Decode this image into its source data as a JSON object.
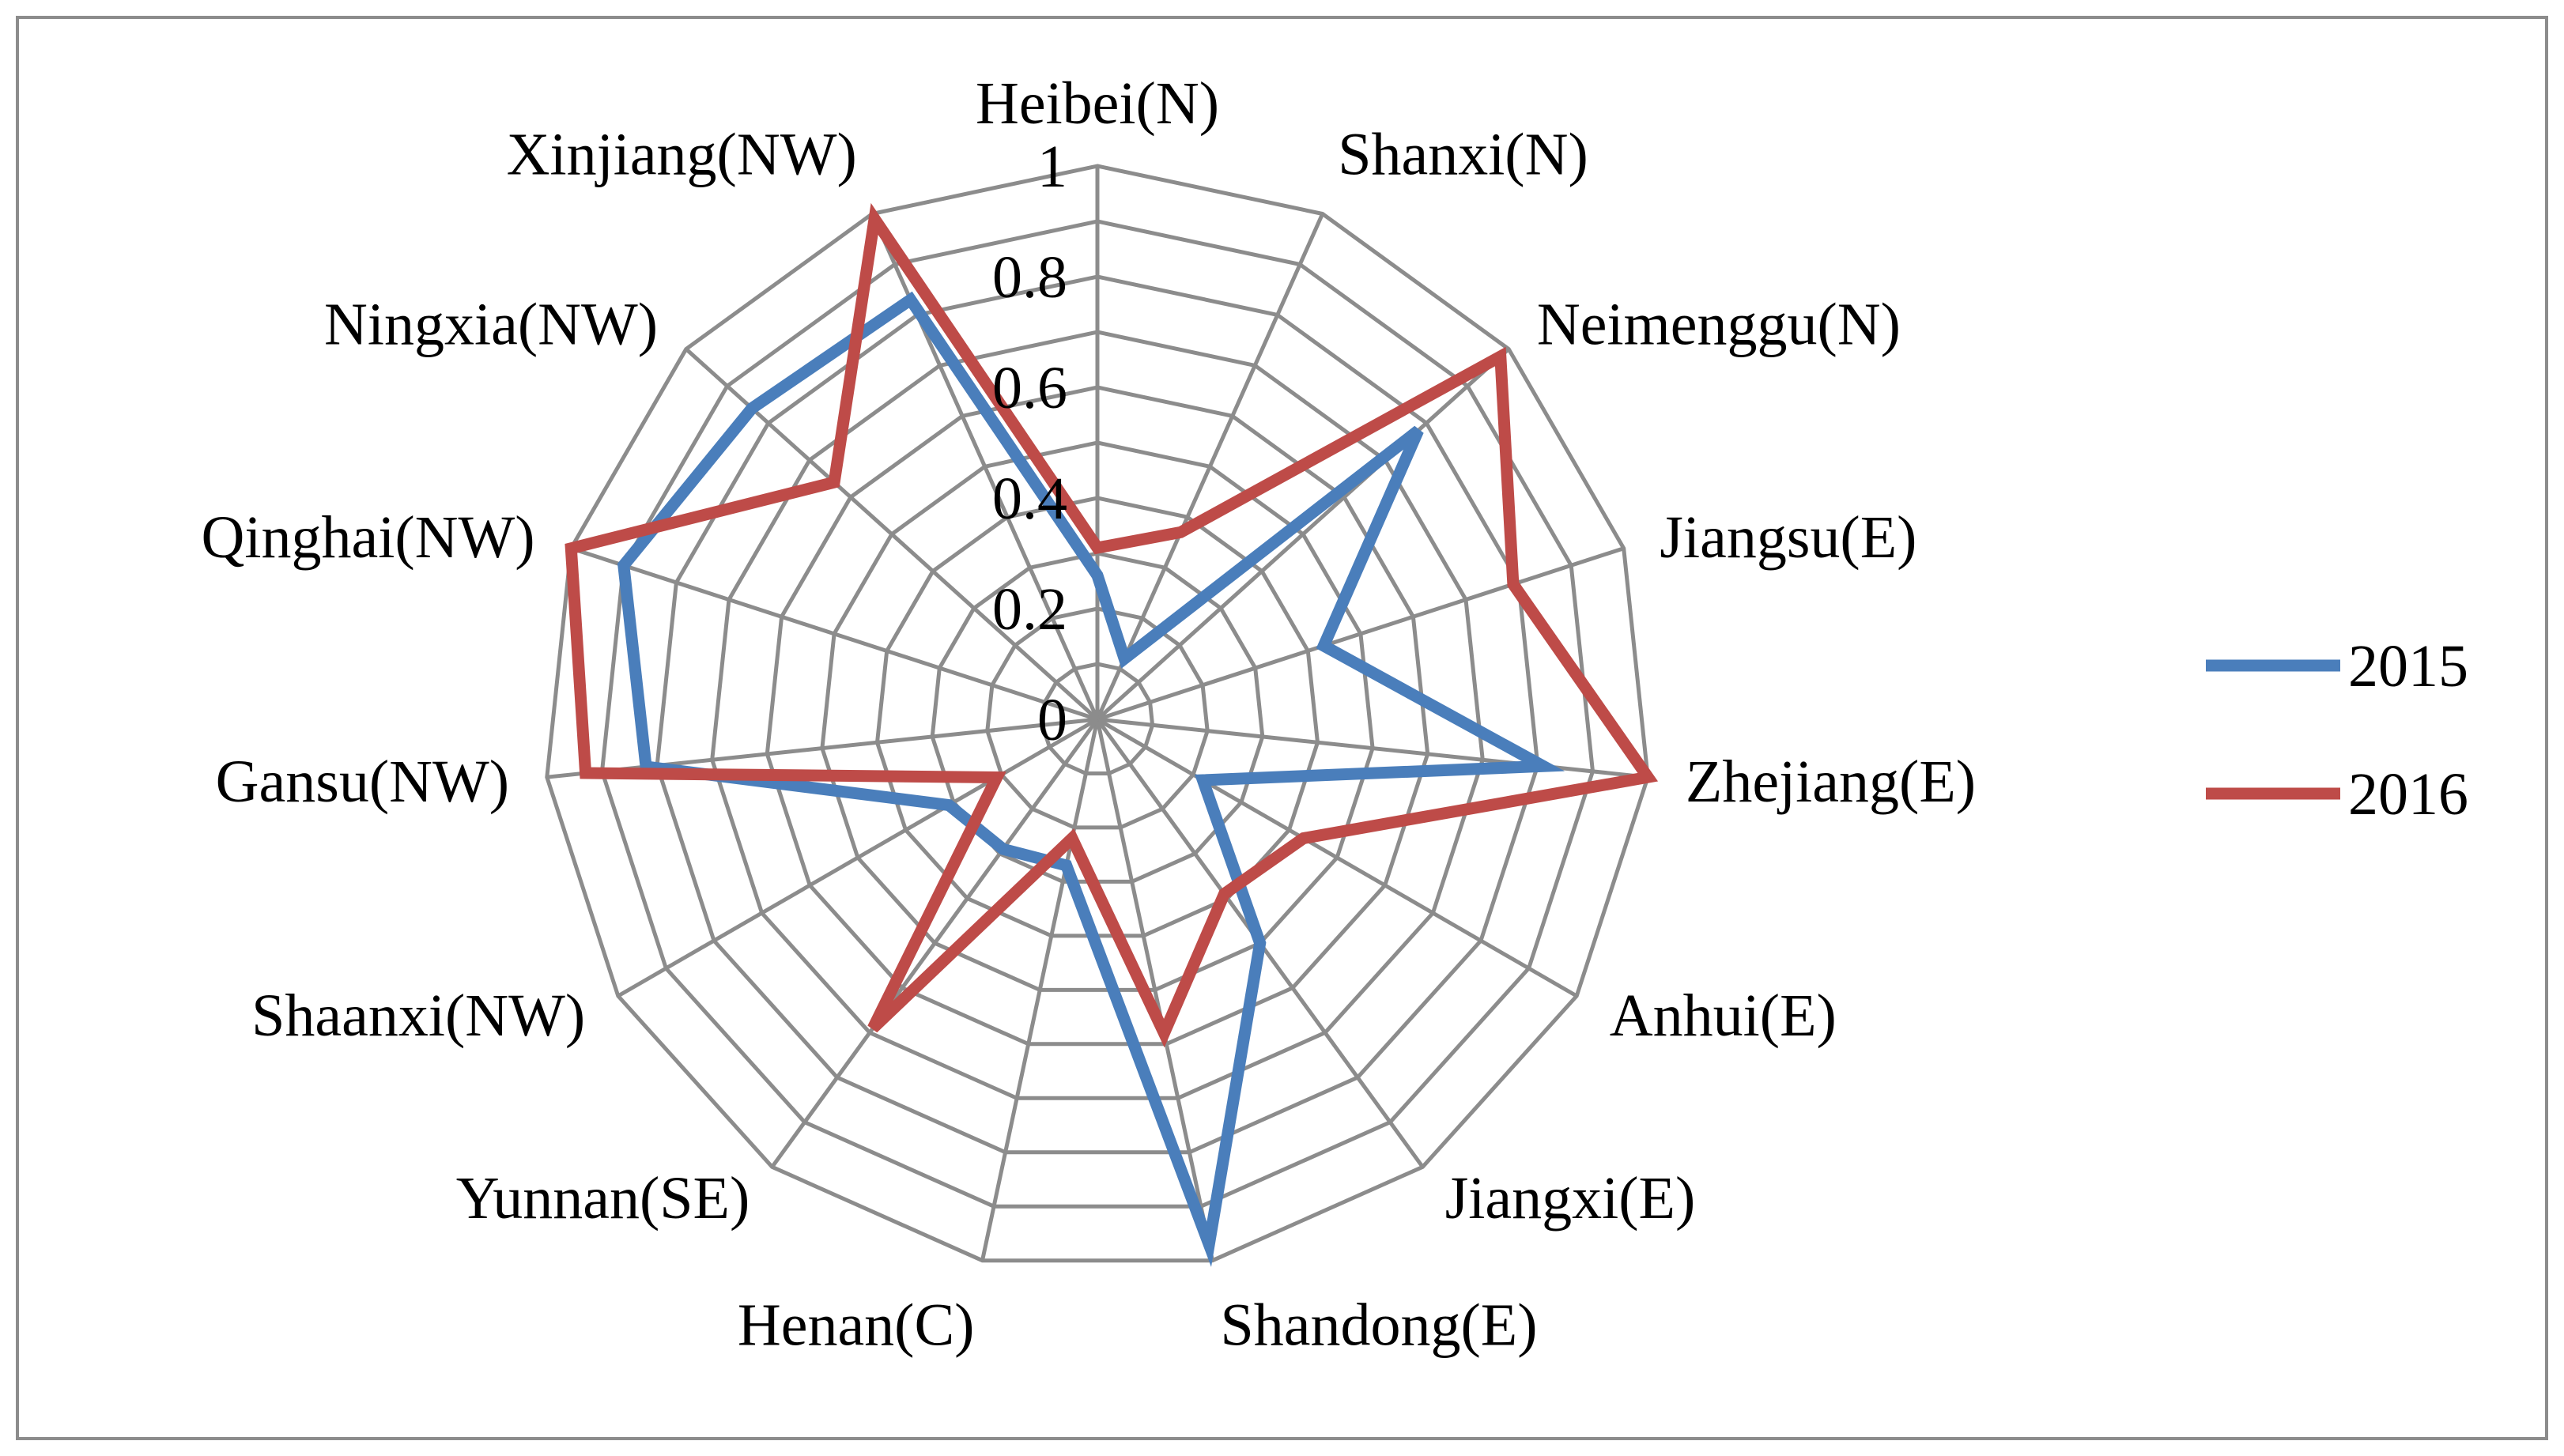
{
  "chart_data": {
    "type": "radar",
    "categories": [
      "Heibei(N)",
      "Shanxi(N)",
      "Neimenggu(N)",
      "Jiangsu(E)",
      "Zhejiang(E)",
      "Anhui(E)",
      "Jiangxi(E)",
      "Shandong(E)",
      "Henan(C)",
      "Yunnan(SE)",
      "Shaanxi(NW)",
      "Gansu(NW)",
      "Qinghai(NW)",
      "Ningxia(NW)",
      "Xinjiang(NW)"
    ],
    "radial_ticks": [
      "0",
      "0.2",
      "0.4",
      "0.6",
      "0.8",
      "1"
    ],
    "rlim": [
      0,
      1
    ],
    "ring_count": 10,
    "legend_position": "right",
    "series": [
      {
        "name": "2015",
        "color": "#4a7ebb",
        "values": [
          0.26,
          0.12,
          0.78,
          0.43,
          0.81,
          0.22,
          0.5,
          0.97,
          0.27,
          0.29,
          0.31,
          0.82,
          0.9,
          0.84,
          0.83
        ]
      },
      {
        "name": "2016",
        "color": "#be4b48",
        "values": [
          0.31,
          0.37,
          0.98,
          0.79,
          1.0,
          0.43,
          0.39,
          0.58,
          0.22,
          0.69,
          0.21,
          0.93,
          1.0,
          0.64,
          0.99
        ]
      }
    ]
  }
}
